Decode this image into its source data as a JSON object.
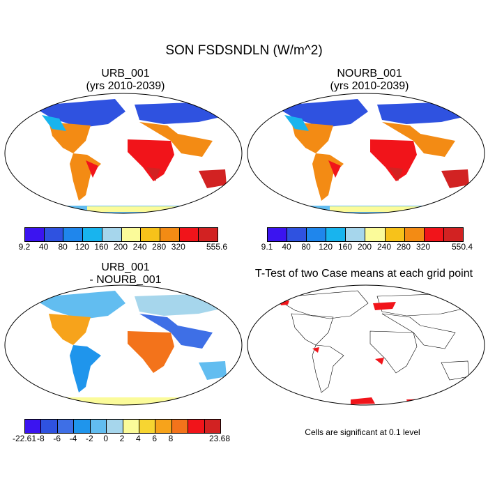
{
  "title": "SON FSDSNDLN (W/m^2)",
  "panels": {
    "urb": {
      "title_line1": "URB_001",
      "title_line2": "(yrs 2010-2039)"
    },
    "nourb": {
      "title_line1": "NOURB_001",
      "title_line2": "(yrs 2010-2039)"
    },
    "diff": {
      "title_line1": "URB_001",
      "title_line2": "- NOURB_001"
    },
    "ttest": {
      "title": "T-Test of two Case means at each grid point",
      "note": "Cells are significant at 0.1 level"
    }
  },
  "colorbars": {
    "abs_colors": [
      "#3b14f0",
      "#2f52e0",
      "#1f86ec",
      "#18b4ee",
      "#a6d6ec",
      "#fbfb9a",
      "#f7c21a",
      "#f38b14",
      "#f1141a",
      "#d22222"
    ],
    "diff_colors": [
      "#3b14f0",
      "#2f52e0",
      "#3e6fe6",
      "#1f95ec",
      "#62bdf0",
      "#a6d6ec",
      "#fbfb9a",
      "#f7d531",
      "#f7a31b",
      "#f3731b",
      "#f1141a",
      "#d22222"
    ],
    "urb_labels": [
      "9.2",
      "40",
      "80",
      "120",
      "160",
      "200",
      "240",
      "280",
      "320",
      "555.6"
    ],
    "nourb_labels": [
      "9.1",
      "40",
      "80",
      "120",
      "160",
      "200",
      "240",
      "280",
      "320",
      "550.4"
    ],
    "diff_labels": [
      "-22.61",
      "-8",
      "-6",
      "-4",
      "-2",
      "0",
      "2",
      "4",
      "6",
      "8",
      "23.68"
    ]
  }
}
